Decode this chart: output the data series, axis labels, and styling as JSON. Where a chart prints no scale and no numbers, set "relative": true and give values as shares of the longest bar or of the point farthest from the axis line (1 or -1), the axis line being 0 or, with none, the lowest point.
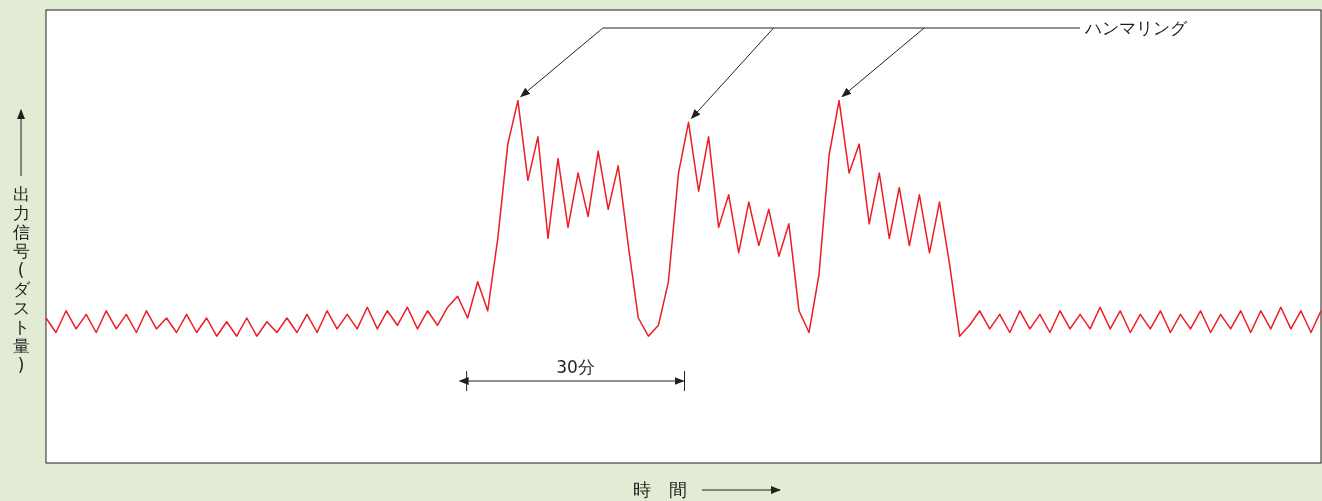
{
  "chart_data": {
    "type": "line",
    "relative": true,
    "xlabel": "時　間",
    "ylabel": "出力信号(ダスト量)",
    "categories": [
      null,
      null,
      null,
      null,
      null,
      null,
      null,
      null,
      null,
      null,
      null,
      null,
      null,
      null,
      null,
      null,
      null,
      null,
      null,
      null,
      null,
      null,
      null,
      null,
      null,
      null,
      null,
      null,
      null,
      null,
      null,
      null,
      null,
      null,
      null,
      null,
      null,
      null,
      null,
      null,
      null,
      null,
      null,
      null,
      null,
      null,
      null,
      null,
      null,
      null,
      null,
      null,
      null,
      null,
      null,
      null,
      null,
      null,
      null,
      null,
      null,
      null,
      null,
      null,
      null,
      null,
      null,
      null,
      null,
      null,
      null,
      null,
      null,
      null,
      null,
      null,
      null,
      null,
      null,
      null,
      null,
      null,
      null,
      null,
      null,
      null,
      null,
      null,
      null,
      null,
      null,
      null,
      null,
      null,
      null,
      null,
      null,
      null,
      null,
      null,
      null,
      null,
      null,
      null,
      null,
      null,
      null,
      null,
      null,
      null,
      null,
      null,
      null,
      null,
      null,
      null,
      null,
      null,
      null,
      null,
      null,
      null,
      null,
      null,
      null,
      null,
      null,
      null
    ],
    "series": [
      {
        "color": "#ee1c25",
        "values": [
          0.4,
          0.36,
          0.42,
          0.37,
          0.41,
          0.36,
          0.42,
          0.37,
          0.41,
          0.36,
          0.42,
          0.37,
          0.4,
          0.36,
          0.41,
          0.36,
          0.4,
          0.35,
          0.39,
          0.35,
          0.4,
          0.35,
          0.39,
          0.36,
          0.4,
          0.36,
          0.41,
          0.36,
          0.42,
          0.37,
          0.41,
          0.37,
          0.43,
          0.37,
          0.42,
          0.38,
          0.43,
          0.37,
          0.42,
          0.38,
          0.43,
          0.46,
          0.4,
          0.5,
          0.42,
          0.62,
          0.88,
          1.0,
          0.78,
          0.9,
          0.62,
          0.84,
          0.65,
          0.8,
          0.68,
          0.86,
          0.7,
          0.82,
          0.6,
          0.4,
          0.35,
          0.38,
          0.5,
          0.8,
          0.94,
          0.75,
          0.9,
          0.65,
          0.74,
          0.58,
          0.72,
          0.6,
          0.7,
          0.57,
          0.66,
          0.42,
          0.36,
          0.52,
          0.85,
          1.0,
          0.8,
          0.88,
          0.66,
          0.8,
          0.62,
          0.76,
          0.6,
          0.74,
          0.58,
          0.72,
          0.55,
          0.35,
          0.38,
          0.42,
          0.37,
          0.41,
          0.36,
          0.42,
          0.37,
          0.41,
          0.36,
          0.42,
          0.37,
          0.41,
          0.37,
          0.43,
          0.37,
          0.42,
          0.36,
          0.41,
          0.37,
          0.42,
          0.36,
          0.41,
          0.37,
          0.42,
          0.36,
          0.41,
          0.37,
          0.42,
          0.36,
          0.42,
          0.37,
          0.43,
          0.37,
          0.42,
          0.36,
          0.42
        ]
      }
    ],
    "annotations": [
      "ハンマリング",
      "30分"
    ]
  }
}
